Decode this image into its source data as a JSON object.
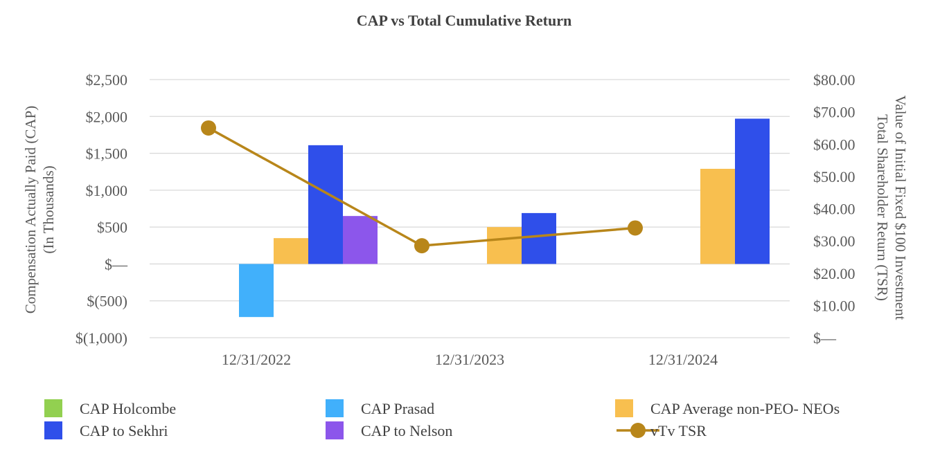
{
  "chart_data": {
    "type": "bar",
    "title": "CAP vs Total Cumulative Return",
    "categories": [
      "12/31/2022",
      "12/31/2023",
      "12/31/2024"
    ],
    "ylabel": [
      "Compensation Actually Paid (CAP)",
      "(In Thousands)"
    ],
    "y2label": [
      "Value of Initial Fixed $100 Investment",
      "Total Shareholder Return (TSR)"
    ],
    "ylim": [
      -1000,
      2500
    ],
    "y2lim": [
      0,
      80
    ],
    "yticks": [
      {
        "v": 2500,
        "label": "$2,500"
      },
      {
        "v": 2000,
        "label": "$2,000"
      },
      {
        "v": 1500,
        "label": "$1,500"
      },
      {
        "v": 1000,
        "label": "$1,000"
      },
      {
        "v": 500,
        "label": "$500"
      },
      {
        "v": 0,
        "label": "$—"
      },
      {
        "v": -500,
        "label": "$(500)"
      },
      {
        "v": -1000,
        "label": "$(1,000)"
      }
    ],
    "y2ticks": [
      {
        "v": 80,
        "label": "$80.00"
      },
      {
        "v": 70,
        "label": "$70.00"
      },
      {
        "v": 60,
        "label": "$60.00"
      },
      {
        "v": 50,
        "label": "$50.00"
      },
      {
        "v": 40,
        "label": "$40.00"
      },
      {
        "v": 30,
        "label": "$30.00"
      },
      {
        "v": 20,
        "label": "$20.00"
      },
      {
        "v": 10,
        "label": "$10.00"
      },
      {
        "v": 0,
        "label": "$—"
      }
    ],
    "series": [
      {
        "name": "CAP Holcombe",
        "color": "#92d050",
        "values": [
          null,
          null,
          null
        ]
      },
      {
        "name": "CAP Prasad",
        "color": "#41b0fb",
        "values": [
          -720,
          null,
          null
        ]
      },
      {
        "name": "CAP Average non-PEO- NEOs",
        "color": "#f8bf4f",
        "values": [
          350,
          500,
          1290
        ]
      },
      {
        "name": " CAP to Sekhri",
        "color": "#2f4fea",
        "values": [
          1610,
          690,
          1970
        ]
      },
      {
        "name": " CAP to Nelson",
        "color": "#8c56eb",
        "values": [
          650,
          null,
          null
        ]
      }
    ],
    "line_series": {
      "name": "vTv TSR",
      "color": "#b8861a",
      "axis": "right",
      "values": [
        65,
        28.5,
        34
      ]
    },
    "legend": [
      {
        "name": "CAP Holcombe",
        "color": "#92d050",
        "kind": "bar"
      },
      {
        "name": "CAP Prasad",
        "color": "#41b0fb",
        "kind": "bar"
      },
      {
        "name": "CAP Average non-PEO- NEOs",
        "color": "#f8bf4f",
        "kind": "bar"
      },
      {
        "name": " CAP to Sekhri",
        "color": "#2f4fea",
        "kind": "bar"
      },
      {
        "name": " CAP to Nelson",
        "color": "#8c56eb",
        "kind": "bar"
      },
      {
        "name": "vTv TSR",
        "color": "#b8861a",
        "kind": "line"
      }
    ],
    "grid": true,
    "legend_position": "bottom"
  }
}
